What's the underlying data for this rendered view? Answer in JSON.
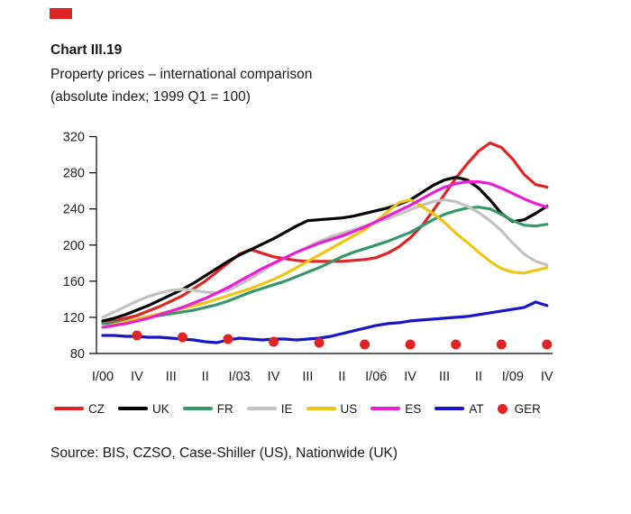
{
  "page": {
    "accent_red": "#e02424"
  },
  "footer": {
    "source": "Source: BIS, CZSO, Case-Shiller (US), Nationwide (UK)"
  },
  "chart_data": {
    "type": "line",
    "title": "Chart III.19",
    "subtitle": "Property prices – international comparison",
    "note": "(absolute index; 1999 Q1 = 100)",
    "x_tick_labels": [
      "I/00",
      "IV",
      "III",
      "II",
      "I/03",
      "IV",
      "III",
      "II",
      "I/06",
      "IV",
      "III",
      "II",
      "I/09",
      "IV"
    ],
    "x_axis_note": "quarterly 2000Q1–2009Q4, labels every 3 quarters",
    "ylim": [
      80,
      320
    ],
    "y_ticks": [
      80,
      120,
      160,
      200,
      240,
      280,
      320
    ],
    "grid": false,
    "legend_position": "bottom",
    "series": [
      {
        "name": "CZ",
        "color": "#e02424",
        "values": [
          114,
          116,
          119,
          122,
          127,
          132,
          138,
          144,
          152,
          160,
          170,
          180,
          190,
          195,
          191,
          187,
          185,
          183,
          182,
          182,
          182,
          182,
          183,
          184,
          186,
          191,
          198,
          208,
          221,
          238,
          256,
          274,
          290,
          304,
          313,
          308,
          295,
          278,
          267,
          264
        ]
      },
      {
        "name": "UK",
        "color": "#000000",
        "values": [
          116,
          119,
          123,
          128,
          133,
          139,
          145,
          151,
          158,
          166,
          174,
          182,
          189,
          195,
          201,
          207,
          214,
          221,
          227,
          228,
          229,
          230,
          232,
          235,
          238,
          241,
          245,
          250,
          258,
          266,
          272,
          275,
          272,
          263,
          250,
          235,
          226,
          228,
          235,
          243
        ]
      },
      {
        "name": "FR",
        "color": "#37976b",
        "values": [
          113,
          114,
          116,
          118,
          120,
          122,
          124,
          126,
          128,
          131,
          134,
          138,
          143,
          148,
          152,
          156,
          160,
          165,
          170,
          175,
          181,
          187,
          192,
          196,
          200,
          204,
          209,
          214,
          221,
          228,
          234,
          238,
          241,
          242,
          240,
          234,
          227,
          222,
          221,
          223
        ]
      },
      {
        "name": "IE",
        "color": "#c2c2c2",
        "values": [
          120,
          126,
          132,
          138,
          143,
          147,
          150,
          151,
          150,
          148,
          147,
          150,
          156,
          163,
          171,
          179,
          186,
          192,
          198,
          204,
          209,
          213,
          217,
          221,
          225,
          229,
          234,
          239,
          244,
          248,
          250,
          248,
          243,
          236,
          227,
          216,
          202,
          190,
          182,
          178
        ]
      },
      {
        "name": "US",
        "color": "#f0c413",
        "values": [
          109,
          112,
          115,
          118,
          121,
          124,
          127,
          130,
          133,
          136,
          140,
          144,
          148,
          152,
          157,
          162,
          168,
          175,
          182,
          189,
          196,
          203,
          210,
          217,
          226,
          237,
          247,
          250,
          243,
          235,
          225,
          213,
          203,
          192,
          182,
          174,
          170,
          169,
          172,
          175
        ]
      },
      {
        "name": "ES",
        "color": "#ea1fd5",
        "values": [
          109,
          111,
          113,
          116,
          119,
          123,
          127,
          131,
          136,
          141,
          147,
          153,
          160,
          167,
          174,
          180,
          186,
          192,
          197,
          202,
          206,
          210,
          215,
          220,
          226,
          232,
          238,
          244,
          251,
          258,
          264,
          268,
          270,
          270,
          268,
          263,
          257,
          251,
          246,
          242
        ]
      },
      {
        "name": "AT",
        "color": "#1616c8",
        "values": [
          100,
          100,
          99,
          99,
          98,
          98,
          97,
          96,
          95,
          93,
          92,
          95,
          97,
          96,
          95,
          96,
          96,
          95,
          96,
          97,
          99,
          102,
          105,
          108,
          111,
          113,
          114,
          116,
          117,
          118,
          119,
          120,
          121,
          123,
          125,
          127,
          129,
          131,
          137,
          133
        ]
      }
    ],
    "annual_dot_series": {
      "name": "GER",
      "color": "#e02424",
      "marker": "dot",
      "quarter_indices": [
        3,
        7,
        11,
        15,
        19,
        23,
        27,
        31,
        35,
        39
      ],
      "values": [
        100,
        98,
        96,
        93,
        92,
        90,
        90,
        90,
        90,
        90
      ]
    }
  }
}
